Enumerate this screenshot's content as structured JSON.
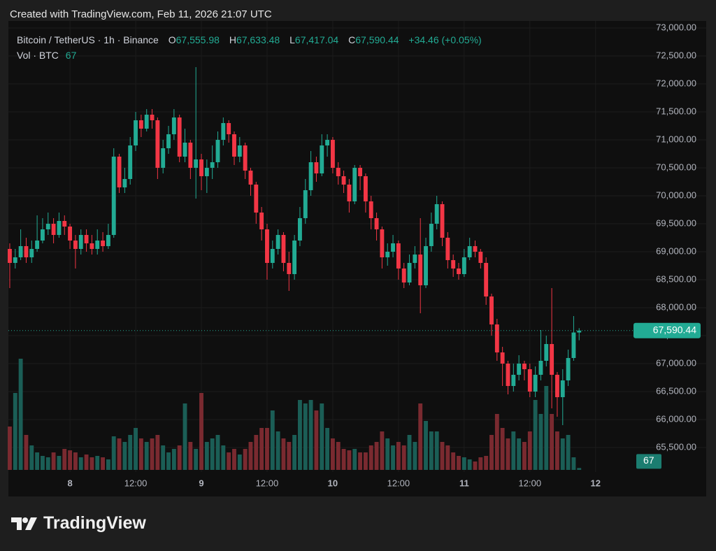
{
  "header": "Created with TradingView.com, Feb 11, 2026 21:07 UTC",
  "legend": {
    "symbol": "Bitcoin / TetherUS · 1h · Binance",
    "open_label": "O",
    "open": "67,555.98",
    "high_label": "H",
    "high": "67,633.48",
    "low_label": "L",
    "low": "67,417.04",
    "close_label": "C",
    "close": "67,590.44",
    "change": "+34.46 (+0.05%)",
    "volume_label": "Vol · BTC",
    "volume": "67"
  },
  "footer": "TradingView",
  "chart_data": {
    "type": "candlestick",
    "up_color": "#22ab94",
    "down_color": "#f23645",
    "volume_up_color": "#1b5e56",
    "volume_down_color": "#7a2a30",
    "xlim": [
      -0.25,
      113.8
    ],
    "xticks": [
      {
        "value": 11,
        "label": "8"
      },
      {
        "value": 23,
        "label": "12:00"
      },
      {
        "value": 35,
        "label": "9"
      },
      {
        "value": 47,
        "label": "12:00"
      },
      {
        "value": 59,
        "label": "10"
      },
      {
        "value": 71,
        "label": "12:00"
      },
      {
        "value": 83,
        "label": "11"
      },
      {
        "value": 95,
        "label": "12:00"
      },
      {
        "value": 107,
        "label": "12"
      }
    ],
    "ylim": [
      65062.5,
      73125
    ],
    "yticks": [
      {
        "value": 65500,
        "label": "65,500.00"
      },
      {
        "value": 66000,
        "label": "66,000.00"
      },
      {
        "value": 66500,
        "label": "66,500.00"
      },
      {
        "value": 67000,
        "label": "67,000.00"
      },
      {
        "value": 67500,
        "label": "67,500.00"
      },
      {
        "value": 68000,
        "label": "68,000.00"
      },
      {
        "value": 68500,
        "label": "68,500.00"
      },
      {
        "value": 69000,
        "label": "69,000.00"
      },
      {
        "value": 69500,
        "label": "69,500.00"
      },
      {
        "value": 70000,
        "label": "70,000.00"
      },
      {
        "value": 70500,
        "label": "70,500.00"
      },
      {
        "value": 71000,
        "label": "71,000.00"
      },
      {
        "value": 71500,
        "label": "71,500.00"
      },
      {
        "value": 72000,
        "label": "72,000.00"
      },
      {
        "value": 72500,
        "label": "72,500.00"
      },
      {
        "value": 73000,
        "label": "73,000.00"
      }
    ],
    "volume_ylim": [
      0,
      4000
    ],
    "grid": true,
    "last_price": {
      "value": 67590.44,
      "label": "67,590.44"
    },
    "last_volume": {
      "value": 67,
      "label": "67"
    },
    "open": [
      69050,
      68800,
      68900,
      69100,
      68900,
      69050,
      69200,
      69400,
      69500,
      69300,
      69550,
      69450,
      69200,
      69050,
      69300,
      69150,
      69050,
      69200,
      69100,
      69300,
      70700,
      70150,
      70300,
      70900,
      71350,
      71200,
      71450,
      71350,
      70500,
      70850,
      71100,
      71400,
      70700,
      70950,
      70500,
      70650,
      70350,
      70500,
      70600,
      71000,
      71300,
      71100,
      70700,
      70900,
      70450,
      70200,
      69700,
      69400,
      68800,
      69050,
      69300,
      68800,
      68600,
      69200,
      69600,
      70100,
      70600,
      70400,
      70900,
      71000,
      70500,
      70350,
      70200,
      69900,
      70500,
      70350,
      69900,
      69600,
      69400,
      68900,
      69000,
      69150,
      68700,
      68450,
      68800,
      68950,
      68400,
      69100,
      69500,
      69850,
      69250,
      68850,
      68700,
      68600,
      68900,
      69100,
      69000,
      68800,
      68200,
      67700,
      67200,
      67000,
      66600,
      66800,
      67000,
      66900,
      66500,
      66800,
      67050,
      67350,
      66800,
      66400,
      66700,
      67100,
      67555.98
    ],
    "high": [
      69150,
      69050,
      69400,
      69250,
      69200,
      69650,
      69600,
      69700,
      69600,
      69700,
      69650,
      69500,
      69300,
      69400,
      69400,
      69300,
      69400,
      69350,
      69500,
      70850,
      70750,
      70500,
      71050,
      71500,
      71450,
      71550,
      71550,
      71400,
      71000,
      71250,
      71550,
      71450,
      71200,
      71000,
      72300,
      70750,
      70650,
      70900,
      71150,
      71400,
      71350,
      71150,
      71050,
      70950,
      70500,
      70250,
      69800,
      69500,
      69200,
      69400,
      69350,
      69000,
      69300,
      69800,
      70300,
      70800,
      70700,
      71100,
      71100,
      71050,
      70600,
      70450,
      70300,
      70550,
      70550,
      70400,
      70000,
      69700,
      69450,
      69150,
      69300,
      69200,
      68800,
      68950,
      69100,
      69600,
      69250,
      69700,
      70000,
      69900,
      69350,
      68950,
      68800,
      69050,
      69250,
      69200,
      69050,
      68900,
      68250,
      67800,
      67300,
      67050,
      67000,
      67150,
      67050,
      67000,
      66950,
      67600,
      67500,
      68350,
      66850,
      66900,
      67250,
      67850,
      67633.48
    ],
    "low": [
      68350,
      68700,
      68850,
      68800,
      68800,
      69000,
      69150,
      69300,
      69150,
      69250,
      69300,
      69050,
      68700,
      68950,
      69000,
      68950,
      68950,
      69000,
      69050,
      69250,
      70050,
      70050,
      70200,
      70800,
      71050,
      71150,
      71200,
      70300,
      70400,
      70750,
      71000,
      70600,
      70600,
      70300,
      69950,
      70100,
      70050,
      70300,
      70500,
      70900,
      70950,
      70550,
      70600,
      70300,
      70000,
      69500,
      69200,
      68500,
      68700,
      68950,
      68650,
      68300,
      68500,
      69100,
      69500,
      70000,
      70250,
      70350,
      70700,
      70400,
      70200,
      70050,
      69700,
      69850,
      70100,
      69700,
      69400,
      69200,
      68700,
      68750,
      68900,
      68500,
      68350,
      68400,
      68700,
      67900,
      68350,
      69000,
      69400,
      69100,
      68700,
      68550,
      68500,
      68550,
      68850,
      68900,
      68700,
      68050,
      67500,
      67050,
      66600,
      66450,
      66500,
      66700,
      66700,
      66400,
      66400,
      66700,
      66950,
      66200,
      66050,
      65900,
      66600,
      67050,
      67417.04
    ],
    "close": [
      68800,
      68900,
      69100,
      68900,
      69050,
      69200,
      69400,
      69500,
      69300,
      69550,
      69450,
      69200,
      69050,
      69300,
      69150,
      69050,
      69200,
      69100,
      69300,
      70700,
      70150,
      70300,
      70900,
      71350,
      71200,
      71450,
      71350,
      70500,
      70850,
      71100,
      71400,
      70700,
      70950,
      70500,
      70650,
      70350,
      70500,
      70600,
      71000,
      71300,
      71100,
      70700,
      70900,
      70450,
      70200,
      69700,
      69400,
      68800,
      69050,
      69300,
      68800,
      68600,
      69200,
      69600,
      70100,
      70600,
      70400,
      70900,
      71000,
      70500,
      70350,
      70200,
      69900,
      70500,
      70350,
      69900,
      69600,
      69400,
      68900,
      69000,
      69150,
      68700,
      68450,
      68800,
      68950,
      68400,
      69100,
      69500,
      69850,
      69250,
      68850,
      68700,
      68600,
      68900,
      69100,
      69000,
      68800,
      68200,
      67700,
      67200,
      67000,
      66600,
      66800,
      67000,
      66900,
      66500,
      66800,
      67050,
      67350,
      66800,
      66400,
      66700,
      67100,
      67555.98,
      67590.44
    ],
    "volume": [
      1550,
      2750,
      3975,
      1250,
      875,
      625,
      500,
      450,
      625,
      500,
      750,
      700,
      625,
      450,
      550,
      450,
      500,
      450,
      375,
      1200,
      1125,
      1000,
      1250,
      1500,
      1125,
      1000,
      1125,
      1250,
      875,
      625,
      750,
      875,
      2375,
      1000,
      750,
      2750,
      1000,
      1125,
      1250,
      875,
      625,
      750,
      550,
      750,
      1000,
      1250,
      1500,
      1500,
      2125,
      1375,
      1125,
      1000,
      1250,
      2500,
      2375,
      2500,
      2125,
      2375,
      1500,
      1125,
      1000,
      750,
      700,
      750,
      625,
      625,
      875,
      1000,
      1375,
      1125,
      875,
      1000,
      875,
      1250,
      1000,
      2375,
      1750,
      1375,
      1375,
      1000,
      875,
      625,
      500,
      450,
      375,
      300,
      450,
      500,
      1250,
      2000,
      1500,
      1125,
      1375,
      1125,
      1000,
      1375,
      2500,
      2000,
      3000,
      2000,
      1375,
      1125,
      1250,
      450,
      67
    ]
  }
}
